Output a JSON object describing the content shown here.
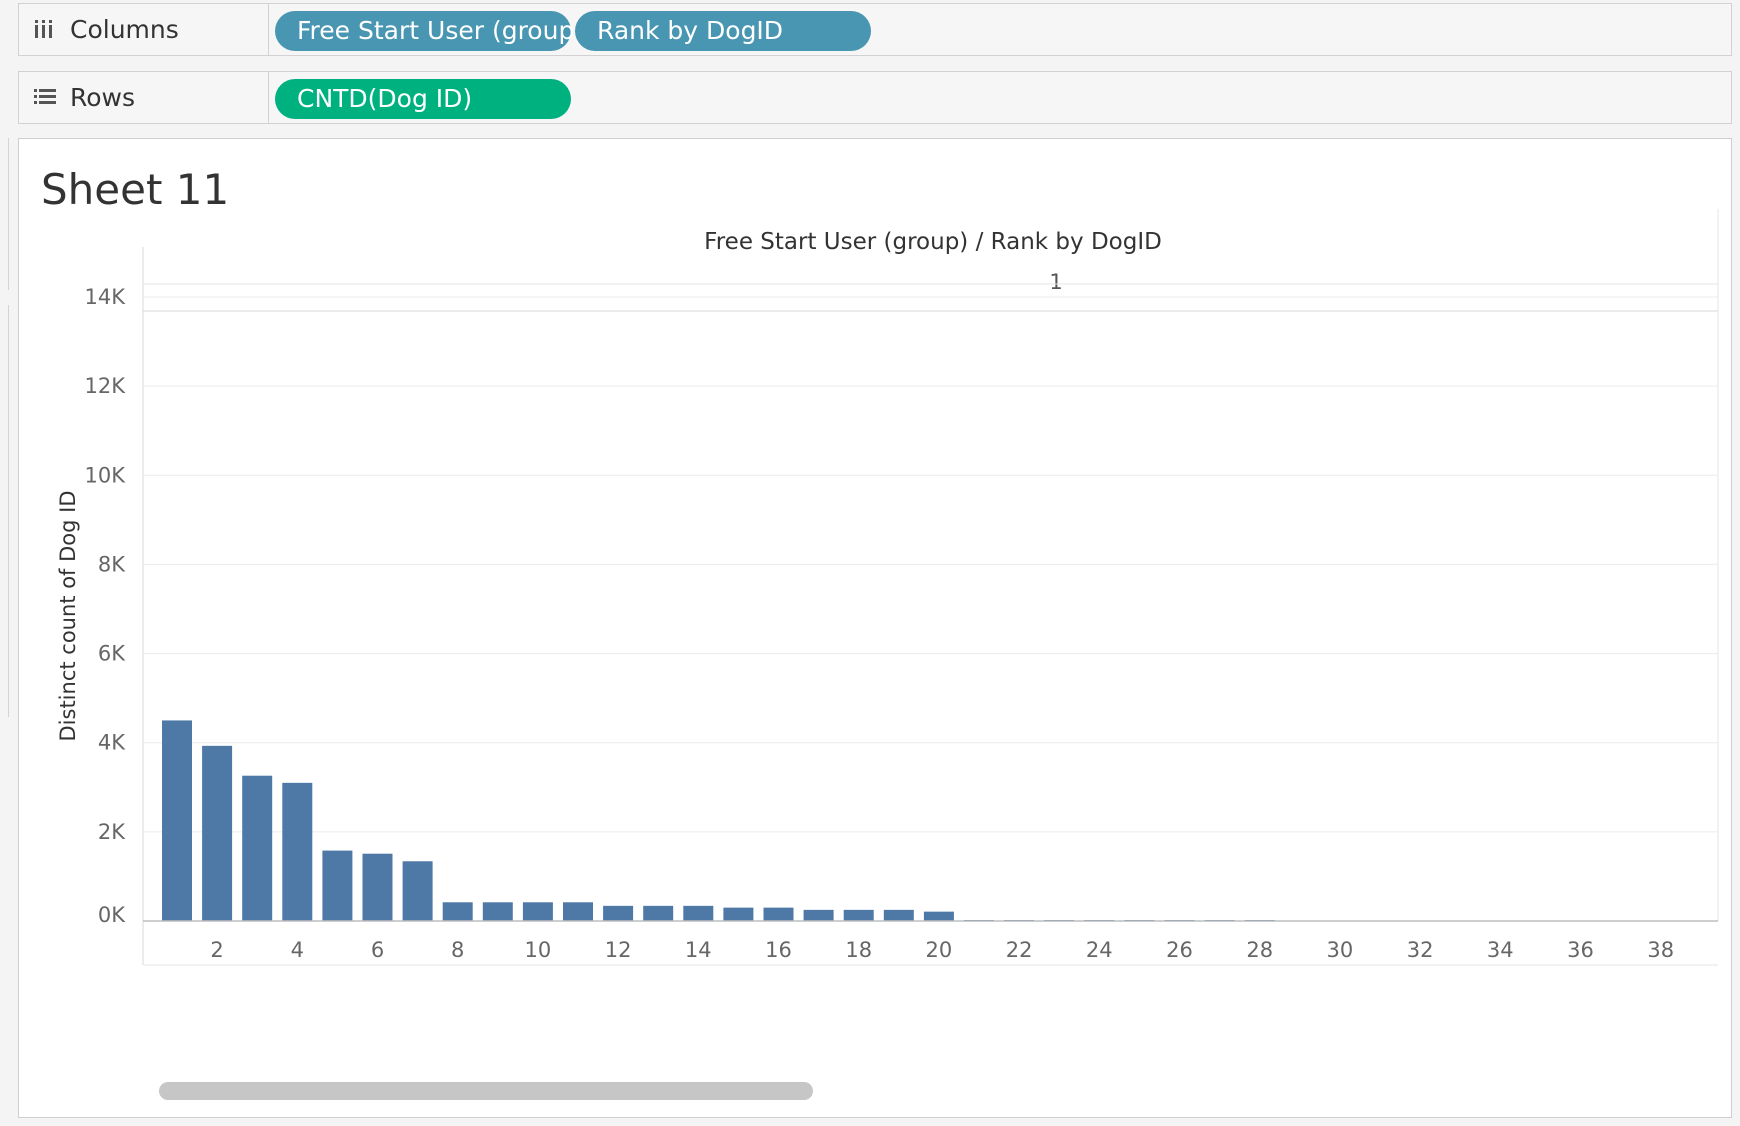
{
  "shelves": {
    "columns": {
      "label": "Columns",
      "pills": [
        {
          "text": "Free Start User (group)",
          "color": "#4996b2"
        },
        {
          "text": "Rank by DogID",
          "color": "#4996b2"
        }
      ]
    },
    "rows": {
      "label": "Rows",
      "pills": [
        {
          "text": "CNTD(Dog ID)",
          "color": "#00b180"
        }
      ]
    }
  },
  "sheet": {
    "title": "Sheet 11"
  },
  "chart_data": {
    "type": "bar",
    "title": "Free Start User (group)  /  Rank by DogID",
    "pane_header": "1",
    "ylabel": "Distinct count of Dog ID",
    "xlabel": "",
    "ylim": [
      0,
      14000
    ],
    "y_ticks": [
      0,
      2000,
      4000,
      6000,
      8000,
      10000,
      12000,
      14000
    ],
    "y_tick_labels": [
      "0K",
      "2K",
      "4K",
      "6K",
      "8K",
      "10K",
      "12K",
      "14K"
    ],
    "x_tick_labels": [
      "2",
      "4",
      "6",
      "8",
      "10",
      "12",
      "14",
      "16",
      "18",
      "20",
      "22",
      "24",
      "26",
      "28",
      "30",
      "32",
      "34",
      "36",
      "38"
    ],
    "grid": true,
    "bar_color": "#4e79a7",
    "categories": [
      1,
      2,
      3,
      4,
      5,
      6,
      7,
      8,
      9,
      10,
      11,
      12,
      13,
      14,
      15,
      16,
      17,
      18,
      19,
      20,
      21,
      22,
      23,
      24,
      25,
      26,
      27,
      28
    ],
    "values": [
      4500,
      3930,
      3260,
      3100,
      1580,
      1510,
      1340,
      420,
      420,
      420,
      420,
      340,
      340,
      340,
      300,
      300,
      250,
      250,
      250,
      210,
      20,
      20,
      20,
      20,
      20,
      20,
      20,
      20
    ]
  }
}
